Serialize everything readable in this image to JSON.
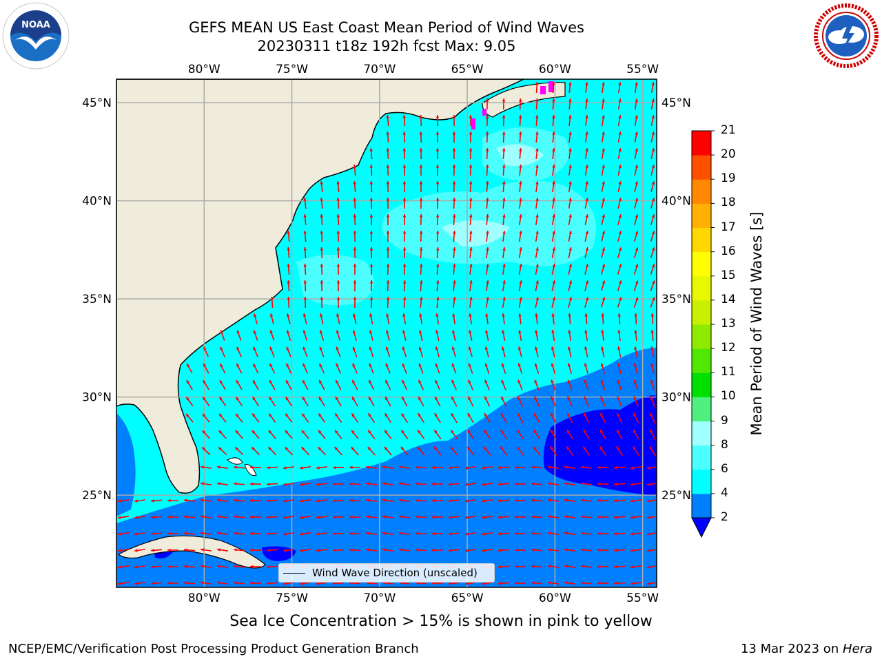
{
  "header": {
    "title": "GEFS MEAN US East Coast Mean Period of Wind Waves",
    "subtitle": "20230311 t18z 192h fcst   Max: 9.05"
  },
  "logos": {
    "left": "NOAA",
    "right": "NATIONAL WEATHER SERVICE"
  },
  "map": {
    "lon_ticks": [
      "80°W",
      "75°W",
      "70°W",
      "65°W",
      "60°W",
      "55°W"
    ],
    "lat_ticks": [
      "45°N",
      "40°N",
      "35°N",
      "30°N",
      "25°N"
    ],
    "lon_values": [
      -80,
      -75,
      -70,
      -65,
      -60,
      -55
    ],
    "lat_values": [
      45,
      40,
      35,
      30,
      25
    ],
    "extent": {
      "lon_min": -85,
      "lon_max": -54.2,
      "lat_min": 20.3,
      "lat_max": 46.2
    },
    "land_color": "#efecdc",
    "arrow_color": "#ff0000",
    "grid": true
  },
  "legend": {
    "label": "Wind Wave Direction (unscaled)"
  },
  "colorbar": {
    "title": "Mean Period of Wind Waves [s]",
    "ticks": [
      "2",
      "4",
      "6",
      "8",
      "9",
      "10",
      "11",
      "12",
      "13",
      "14",
      "15",
      "16",
      "17",
      "18",
      "19",
      "20",
      "21"
    ],
    "colors": [
      "#0080ff",
      "#00ffff",
      "#4cffff",
      "#a0ffff",
      "#50f080",
      "#00e000",
      "#50e800",
      "#90ea00",
      "#c8f000",
      "#e8f800",
      "#ffff00",
      "#ffd800",
      "#ffb000",
      "#ff8800",
      "#ff5000",
      "#ff0000"
    ],
    "under_color": "#0000ff"
  },
  "footer": {
    "caption": "Sea Ice Concentration > 15% is shown in pink to yellow",
    "left": "NCEP/EMC/Verification Post Processing Product Generation Branch",
    "right_date": "13 Mar 2023 on ",
    "right_machine": "Hera"
  }
}
